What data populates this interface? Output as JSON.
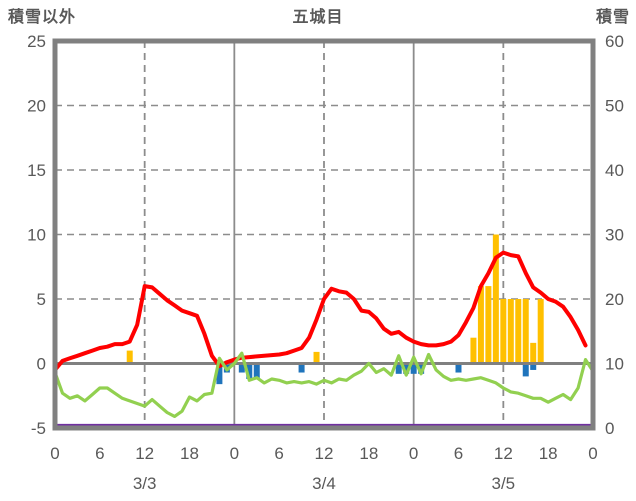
{
  "header": {
    "left_axis_title": "積雪以外",
    "chart_title": "五城目",
    "right_axis_title": "積雪"
  },
  "chart_data": {
    "type": "line+bar",
    "title": "五城目",
    "station": "五城目",
    "left_axis": {
      "label": "積雪以外",
      "range": [
        -5,
        25
      ],
      "ticks": [
        25,
        20,
        15,
        10,
        5,
        0,
        -5
      ]
    },
    "right_axis": {
      "label": "積雪",
      "range": [
        0,
        60
      ],
      "ticks": [
        60,
        50,
        40,
        30,
        20,
        10,
        0
      ]
    },
    "x_axis": {
      "total_hours": 72,
      "hour_tick_step": 6,
      "hour_tick_labels": [
        "0",
        "6",
        "12",
        "18",
        "0",
        "6",
        "12",
        "18",
        "0",
        "6",
        "12",
        "18",
        "0"
      ],
      "day_labels": [
        "3/3",
        "3/4",
        "3/5"
      ],
      "grid": "dashed at 12h of each day, solid at day boundaries"
    },
    "style": {
      "border_color": "#808080",
      "grid_color": "#8c8c8c",
      "zero_line_color": "#808080",
      "text_color": "#595959",
      "background": "#ffffff"
    },
    "series": [
      {
        "name": "red-line",
        "type": "line",
        "axis": "left",
        "color": "#ff0000",
        "hourly_values": [
          -0.5,
          0.2,
          0.4,
          0.6,
          0.8,
          1.0,
          1.2,
          1.3,
          1.5,
          1.5,
          1.7,
          3.0,
          6.0,
          5.9,
          5.4,
          4.9,
          4.5,
          4.1,
          3.9,
          3.7,
          2.3,
          0.6,
          -0.2,
          0.1,
          0.3,
          0.45,
          0.5,
          0.55,
          0.6,
          0.65,
          0.7,
          0.8,
          1.0,
          1.2,
          2.0,
          3.4,
          5.0,
          5.8,
          5.6,
          5.5,
          5.0,
          4.1,
          4.0,
          3.5,
          2.7,
          2.3,
          2.45,
          2.0,
          1.7,
          1.5,
          1.4,
          1.4,
          1.5,
          1.7,
          2.2,
          3.2,
          4.3,
          6.0,
          7.0,
          8.2,
          8.6,
          8.4,
          8.3,
          7.0,
          5.9,
          5.5,
          5.0,
          4.8,
          4.4,
          3.6,
          2.6,
          1.4,
          null
        ]
      },
      {
        "name": "green-line",
        "type": "line",
        "axis": "left",
        "color": "#92d050",
        "hourly_values": [
          -0.7,
          -2.3,
          -2.7,
          -2.5,
          -2.9,
          -2.4,
          -1.9,
          -1.9,
          -2.3,
          -2.7,
          -2.9,
          -3.1,
          -3.3,
          -2.8,
          -3.3,
          -3.8,
          -4.1,
          -3.7,
          -2.6,
          -2.9,
          -2.4,
          -2.3,
          0.4,
          -0.5,
          0.0,
          0.8,
          -1.3,
          -1.1,
          -1.5,
          -1.2,
          -1.3,
          -1.5,
          -1.4,
          -1.5,
          -1.4,
          -1.6,
          -1.3,
          -1.5,
          -1.2,
          -1.3,
          -0.9,
          -0.6,
          0.0,
          -0.7,
          -0.4,
          -0.9,
          0.6,
          -0.9,
          0.5,
          -0.8,
          0.7,
          -0.5,
          -1.0,
          -1.3,
          -1.2,
          -1.3,
          -1.2,
          -1.1,
          -1.3,
          -1.5,
          -1.9,
          -2.2,
          -2.3,
          -2.5,
          -2.7,
          -2.7,
          -3.0,
          -2.7,
          -2.4,
          -2.8,
          -1.9,
          0.3,
          -0.6
        ]
      },
      {
        "name": "orange-bars",
        "type": "bar",
        "axis": "left",
        "color": "#ffc000",
        "points": [
          [
            10,
            1.0
          ],
          [
            35,
            0.9
          ],
          [
            56,
            2.0
          ],
          [
            57,
            6.0
          ],
          [
            58,
            6.0
          ],
          [
            59,
            10.0
          ],
          [
            60,
            5.0
          ],
          [
            61,
            5.0
          ],
          [
            62,
            5.0
          ],
          [
            63,
            5.0
          ],
          [
            64,
            1.6
          ],
          [
            65,
            5.0
          ]
        ]
      },
      {
        "name": "blue-bars",
        "type": "bar",
        "axis": "left",
        "color": "#1f74bc",
        "points": [
          [
            22,
            -1.6
          ],
          [
            23,
            -0.7
          ],
          [
            25,
            -0.7
          ],
          [
            26,
            -1.2
          ],
          [
            27,
            -1.2
          ],
          [
            33,
            -0.7
          ],
          [
            46,
            -0.8
          ],
          [
            47,
            -0.8
          ],
          [
            48,
            -0.8
          ],
          [
            49,
            -0.8
          ],
          [
            54,
            -0.7
          ],
          [
            63,
            -1.0
          ],
          [
            64,
            -0.5
          ]
        ]
      },
      {
        "name": "purple-snow-depth-line",
        "type": "line",
        "axis": "right",
        "color": "#7030a0",
        "constant_value": 0
      }
    ]
  }
}
